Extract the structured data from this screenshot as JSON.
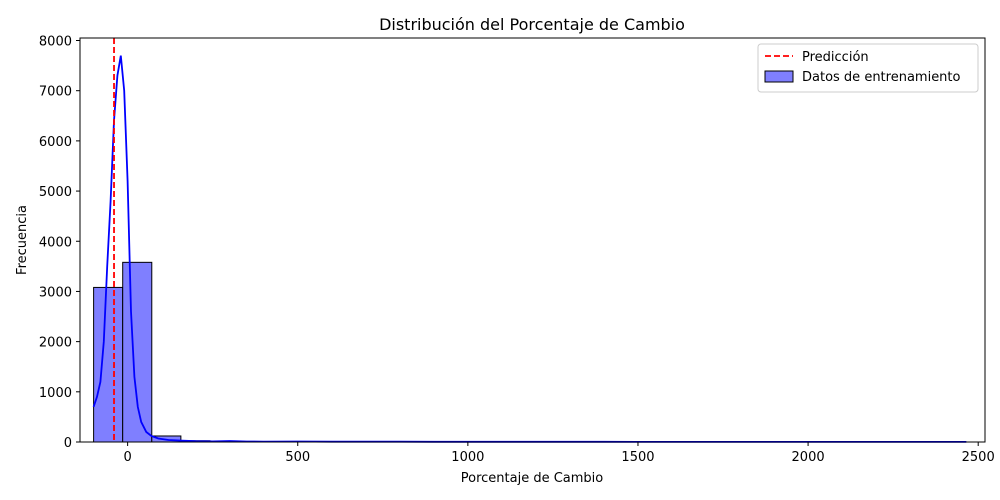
{
  "chart_data": {
    "type": "bar",
    "title": "Distribución del Porcentaje de Cambio",
    "xlabel": "Porcentaje de Cambio",
    "ylabel": "Frecuencia",
    "xlim": [
      -140,
      2520
    ],
    "ylim": [
      0,
      8050
    ],
    "xticks": [
      0,
      500,
      1000,
      1500,
      2000,
      2500
    ],
    "yticks": [
      0,
      1000,
      2000,
      3000,
      4000,
      5000,
      6000,
      7000,
      8000
    ],
    "grid": false,
    "legend_position": "top-right",
    "bin_width": 85.5,
    "bins": [
      {
        "x0": -100,
        "count": 3080
      },
      {
        "x0": -14.5,
        "count": 3580
      },
      {
        "x0": 71,
        "count": 120
      },
      {
        "x0": 156.5,
        "count": 25
      },
      {
        "x0": 242,
        "count": 12
      },
      {
        "x0": 327.5,
        "count": 8
      },
      {
        "x0": 413,
        "count": 6
      },
      {
        "x0": 498.5,
        "count": 5
      },
      {
        "x0": 584,
        "count": 4
      },
      {
        "x0": 669.5,
        "count": 3
      },
      {
        "x0": 755,
        "count": 3
      },
      {
        "x0": 840.5,
        "count": 2
      },
      {
        "x0": 926,
        "count": 2
      },
      {
        "x0": 1011.5,
        "count": 2
      },
      {
        "x0": 1097,
        "count": 1
      },
      {
        "x0": 1182.5,
        "count": 1
      },
      {
        "x0": 1268,
        "count": 2
      },
      {
        "x0": 1353.5,
        "count": 1
      },
      {
        "x0": 1439,
        "count": 1
      },
      {
        "x0": 1524.5,
        "count": 1
      },
      {
        "x0": 1610,
        "count": 1
      },
      {
        "x0": 1695.5,
        "count": 1
      },
      {
        "x0": 1781,
        "count": 1
      },
      {
        "x0": 1866.5,
        "count": 1
      },
      {
        "x0": 1952,
        "count": 1
      },
      {
        "x0": 2037.5,
        "count": 1
      },
      {
        "x0": 2123,
        "count": 1
      },
      {
        "x0": 2208.5,
        "count": 1
      },
      {
        "x0": 2294,
        "count": 1
      },
      {
        "x0": 2379.5,
        "count": 1
      }
    ],
    "kde": {
      "name": "Datos de entrenamiento",
      "color": "#0000ff",
      "points": [
        [
          -100,
          700
        ],
        [
          -90,
          900
        ],
        [
          -80,
          1200
        ],
        [
          -70,
          2000
        ],
        [
          -60,
          3500
        ],
        [
          -50,
          4800
        ],
        [
          -40,
          6400
        ],
        [
          -30,
          7300
        ],
        [
          -20,
          7700
        ],
        [
          -10,
          7000
        ],
        [
          0,
          5200
        ],
        [
          10,
          2600
        ],
        [
          20,
          1300
        ],
        [
          30,
          700
        ],
        [
          40,
          400
        ],
        [
          55,
          200
        ],
        [
          70,
          120
        ],
        [
          90,
          70
        ],
        [
          120,
          40
        ],
        [
          160,
          25
        ],
        [
          200,
          15
        ],
        [
          250,
          12
        ],
        [
          300,
          20
        ],
        [
          350,
          10
        ],
        [
          400,
          8
        ],
        [
          500,
          10
        ],
        [
          600,
          6
        ],
        [
          700,
          5
        ],
        [
          800,
          5
        ],
        [
          900,
          4
        ],
        [
          1000,
          4
        ],
        [
          1100,
          3
        ],
        [
          1200,
          3
        ],
        [
          1300,
          3
        ],
        [
          1400,
          3
        ],
        [
          1500,
          2
        ],
        [
          1600,
          2
        ],
        [
          1700,
          2
        ],
        [
          1800,
          2
        ],
        [
          1900,
          2
        ],
        [
          2000,
          2
        ],
        [
          2100,
          2
        ],
        [
          2200,
          2
        ],
        [
          2300,
          2
        ],
        [
          2400,
          2
        ],
        [
          2465,
          2
        ]
      ]
    },
    "prediction": {
      "name": "Predicción",
      "x": -40,
      "color": "#ff0000"
    },
    "bar_color": "#7f7fff",
    "bar_edge": "#000000",
    "legend": [
      "Predicción",
      "Datos de entrenamiento"
    ]
  }
}
